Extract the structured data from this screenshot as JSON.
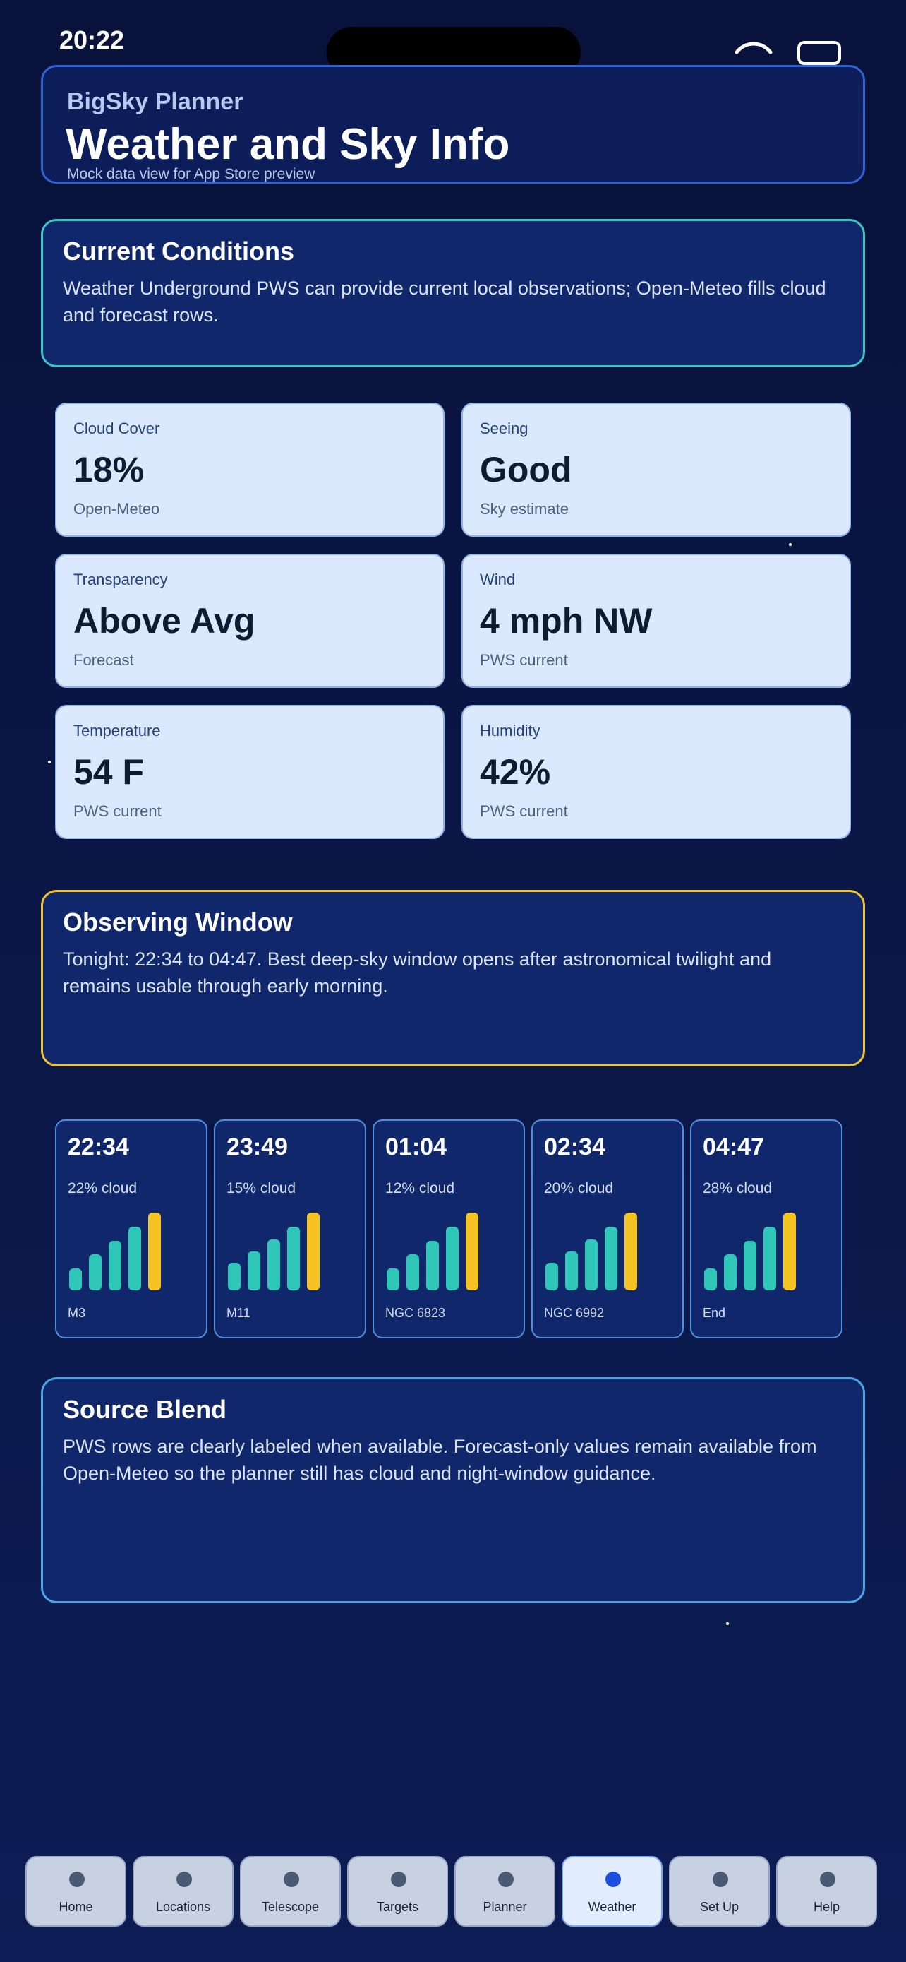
{
  "status": {
    "time": "20:22"
  },
  "header": {
    "app_name": "BigSky Planner",
    "title": "Weather and Sky Info",
    "subtitle": "Mock data view for App Store preview"
  },
  "current_conditions": {
    "title": "Current Conditions",
    "body": "Weather Underground PWS can provide current local observations; Open-Meteo fills cloud and forecast rows."
  },
  "metrics": [
    {
      "label": "Cloud Cover",
      "value": "18%",
      "source": "Open-Meteo"
    },
    {
      "label": "Seeing",
      "value": "Good",
      "source": "Sky estimate"
    },
    {
      "label": "Transparency",
      "value": "Above Avg",
      "source": "Forecast"
    },
    {
      "label": "Wind",
      "value": "4 mph NW",
      "source": "PWS current"
    },
    {
      "label": "Temperature",
      "value": "54 F",
      "source": "PWS current"
    },
    {
      "label": "Humidity",
      "value": "42%",
      "source": "PWS current"
    }
  ],
  "observing_window": {
    "title": "Observing Window",
    "body": "Tonight: 22:34 to 04:47. Best deep-sky window opens after astronomical twilight and remains usable through early morning."
  },
  "timeline": [
    {
      "time": "22:34",
      "cloud": "22% cloud",
      "target": "M3",
      "bars": [
        0.28,
        0.46,
        0.64,
        0.82,
        1.0
      ]
    },
    {
      "time": "23:49",
      "cloud": "15% cloud",
      "target": "M11",
      "bars": [
        0.35,
        0.5,
        0.65,
        0.82,
        1.0
      ]
    },
    {
      "time": "01:04",
      "cloud": "12% cloud",
      "target": "NGC 6823",
      "bars": [
        0.28,
        0.46,
        0.64,
        0.82,
        1.0
      ]
    },
    {
      "time": "02:34",
      "cloud": "20% cloud",
      "target": "NGC 6992",
      "bars": [
        0.35,
        0.5,
        0.65,
        0.82,
        1.0
      ]
    },
    {
      "time": "04:47",
      "cloud": "28% cloud",
      "target": "End",
      "bars": [
        0.28,
        0.46,
        0.64,
        0.82,
        1.0
      ]
    }
  ],
  "source_blend": {
    "title": "Source Blend",
    "body": "PWS rows are clearly labeled when available. Forecast-only values remain available from Open-Meteo so the planner still has cloud and night-window guidance."
  },
  "colors": {
    "bar_teal": "#2fc7b8",
    "bar_highlight": "#f6c324"
  },
  "nav": {
    "active": "Weather",
    "items": [
      "Home",
      "Locations",
      "Telescope",
      "Targets",
      "Planner",
      "Weather",
      "Set Up",
      "Help"
    ]
  }
}
